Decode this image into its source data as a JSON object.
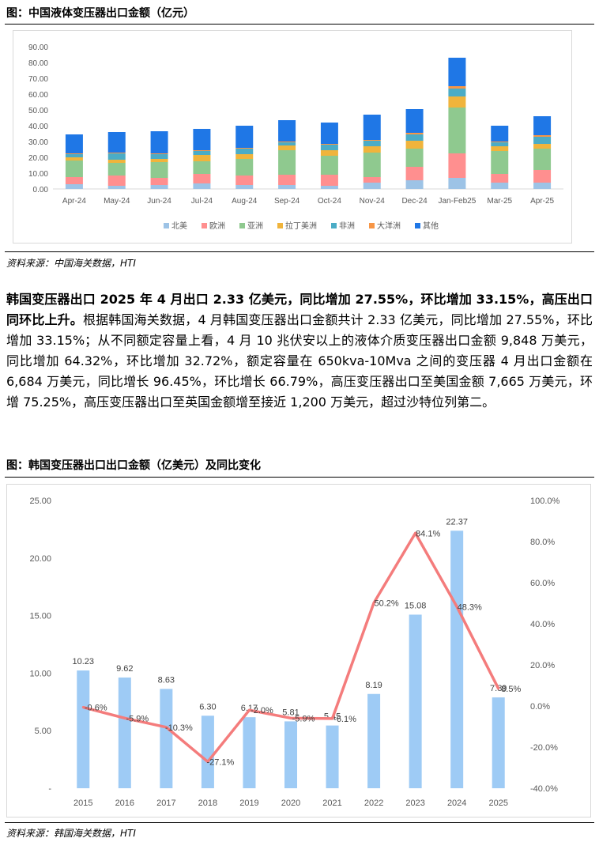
{
  "figure1": {
    "title": "图：中国液体变压器出口金额（亿元）",
    "source": "资料来源：中国海关数据，HTI"
  },
  "paragraph": {
    "lead": "韩国变压器出口 2025 年 4 月出口 2.33 亿美元，同比增加 27.55%，环比增加 33.15%，高压出口同环比上升。",
    "body": "根据韩国海关数据，4 月韩国变压器出口金额共计 2.33 亿美元，同比增加 27.55%，环比增加 33.15%；从不同额定容量上看，4 月 10 兆伏安以上的液体介质变压器出口金额 9,848 万美元，同比增加 64.32%，环比增加 32.72%，额定容量在 650kva-10Mva 之间的变压器 4 月出口金额在 6,684 万美元，同比增长 96.45%，环比增长 66.79%，高压变压器出口至美国金额 7,665 万美元，环增 75.25%，高压变压器出口至英国金额增至接近 1,200 万美元，超过沙特位列第二。"
  },
  "figure2": {
    "title": "图：韩国变压器出口出口金额（亿美元）及同比变化",
    "source": "资料来源：韩国海关数据，HTI"
  },
  "chart_data": [
    {
      "type": "bar",
      "stacked": true,
      "title": "",
      "categories": [
        "Apr-24",
        "May-24",
        "Jun-24",
        "Jul-24",
        "Aug-24",
        "Sep-24",
        "Oct-24",
        "Nov-24",
        "Dec-24",
        "Jan-Feb25",
        "Mar-25",
        "Apr-25"
      ],
      "series": [
        {
          "name": "北美",
          "color": "#9dc3e6",
          "values": [
            3.0,
            2.0,
            2.5,
            3.5,
            2.5,
            2.5,
            2.0,
            4.0,
            5.5,
            7.0,
            4.0,
            4.0
          ]
        },
        {
          "name": "欧洲",
          "color": "#ff8f8f",
          "values": [
            4.5,
            6.5,
            4.5,
            6.0,
            6.0,
            6.5,
            7.0,
            3.5,
            8.5,
            15.5,
            5.5,
            8.0
          ]
        },
        {
          "name": "亚洲",
          "color": "#8fc98f",
          "values": [
            10.5,
            8.0,
            10.0,
            8.0,
            10.5,
            15.5,
            12.0,
            15.5,
            11.5,
            29.0,
            14.5,
            13.5
          ]
        },
        {
          "name": "拉丁美洲",
          "color": "#f0b43c",
          "values": [
            2.0,
            2.0,
            2.0,
            4.0,
            3.0,
            3.0,
            3.5,
            4.0,
            5.0,
            7.0,
            3.0,
            3.0
          ]
        },
        {
          "name": "非洲",
          "color": "#4bacc6",
          "values": [
            2.0,
            4.0,
            3.0,
            2.5,
            3.5,
            2.0,
            3.5,
            3.5,
            4.0,
            5.0,
            2.5,
            4.5
          ]
        },
        {
          "name": "大洋洲",
          "color": "#f79646",
          "values": [
            0.5,
            0.5,
            0.5,
            0.5,
            0.5,
            0.5,
            0.5,
            0.5,
            1.0,
            1.5,
            0.5,
            1.0
          ]
        },
        {
          "name": "其他",
          "color": "#1f77e6",
          "values": [
            12.0,
            13.0,
            14.0,
            13.5,
            14.0,
            13.5,
            13.5,
            16.0,
            15.0,
            18.0,
            10.0,
            12.0
          ]
        }
      ],
      "y_ticks": [
        "0.00",
        "10.00",
        "20.00",
        "30.00",
        "40.00",
        "50.00",
        "60.00",
        "70.00",
        "80.00",
        "90.00"
      ],
      "ylim": [
        0,
        90
      ],
      "legend": "bottom"
    },
    {
      "type": "bar+line",
      "title": "",
      "categories": [
        "2015",
        "2016",
        "2017",
        "2018",
        "2019",
        "2020",
        "2021",
        "2022",
        "2023",
        "2024",
        "2025"
      ],
      "bar_values": [
        10.23,
        9.62,
        8.63,
        6.3,
        6.17,
        5.81,
        5.45,
        8.19,
        15.08,
        22.37,
        7.89
      ],
      "bar_labels": [
        "10.23",
        "9.62",
        "8.63",
        "6.30",
        "6.17",
        "5.81",
        "5.45",
        "8.19",
        "15.08",
        "22.37",
        "7.89"
      ],
      "line_values": [
        -0.6,
        -5.9,
        -10.3,
        -27.1,
        -2.0,
        -5.9,
        -6.1,
        50.2,
        84.1,
        48.3,
        8.5
      ],
      "line_labels": [
        "-0.6%",
        "-5.9%",
        "-10.3%",
        "-27.1%",
        "-2.0%",
        "-5.9%",
        "-6.1%",
        "50.2%",
        "84.1%",
        "48.3%",
        "8.5%"
      ],
      "bar_color": "#9ecbf5",
      "line_color": "#f47c7c",
      "y_left_ticks": [
        "-",
        "5.00",
        "10.00",
        "15.00",
        "20.00",
        "25.00"
      ],
      "y_left_lim": [
        0,
        25
      ],
      "y_right_ticks": [
        "-40.0%",
        "-20.0%",
        "0.0%",
        "20.0%",
        "40.0%",
        "60.0%",
        "80.0%",
        "100.0%"
      ],
      "y_right_lim": [
        -40,
        100
      ]
    }
  ]
}
